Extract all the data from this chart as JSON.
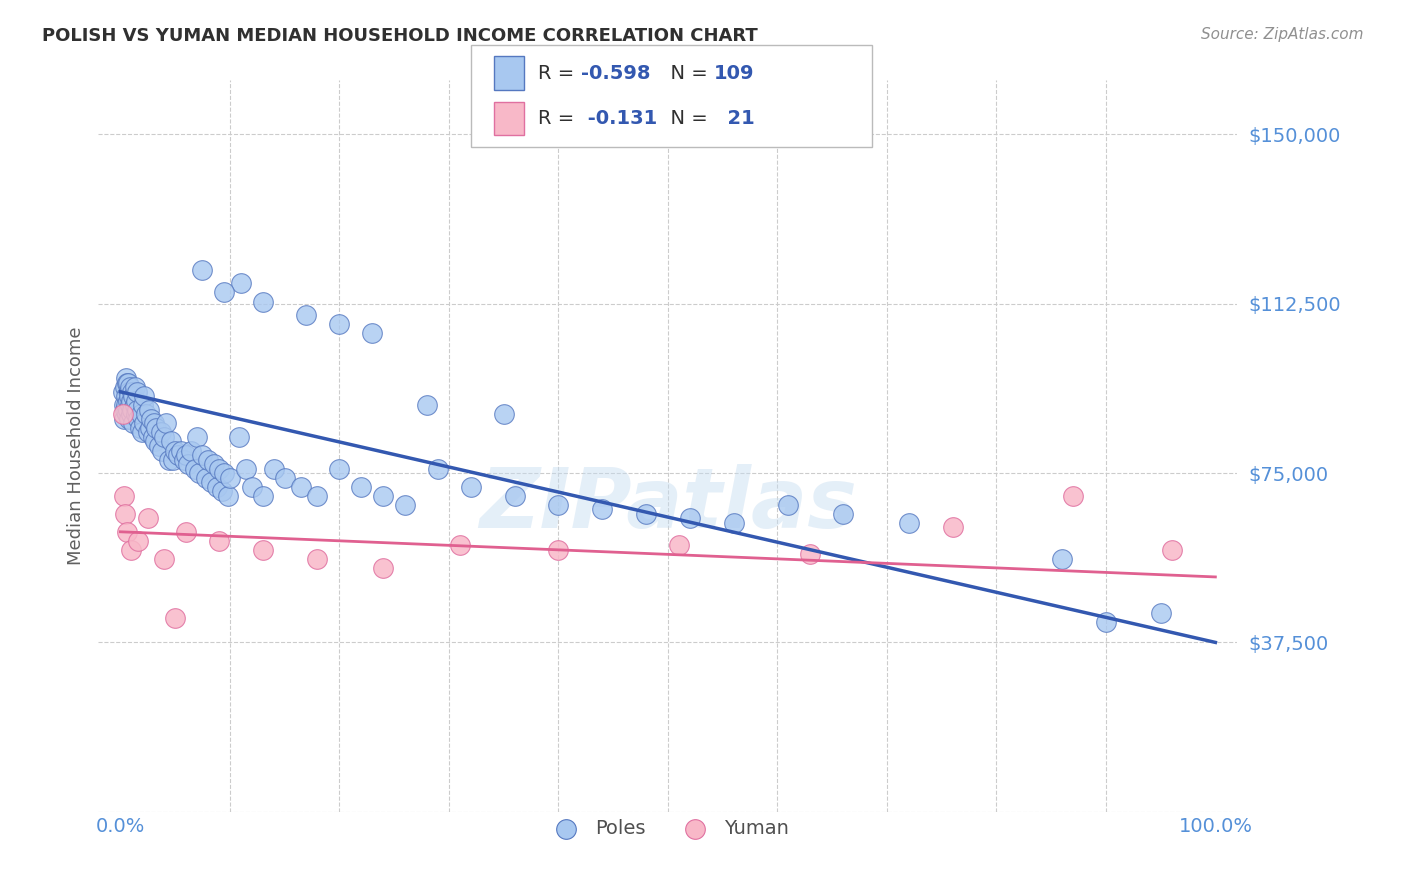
{
  "title": "POLISH VS YUMAN MEDIAN HOUSEHOLD INCOME CORRELATION CHART",
  "source": "Source: ZipAtlas.com",
  "ylabel": "Median Household Income",
  "watermark": "ZIPatlas",
  "legend_label_blue": "Poles",
  "legend_label_pink": "Yuman",
  "blue_scatter_color": "#A8C8F0",
  "blue_edge_color": "#5578C0",
  "blue_line_color": "#3358B0",
  "pink_scatter_color": "#F8B8C8",
  "pink_edge_color": "#E070A0",
  "pink_line_color": "#E06090",
  "title_color": "#303030",
  "source_color": "#909090",
  "ytick_color": "#5590D8",
  "xtick_color": "#5590D8",
  "ylabel_color": "#606060",
  "background_color": "#FFFFFF",
  "grid_color": "#CCCCCC",
  "legend_text_color": "#303030",
  "legend_rv_color": "#3358B0",
  "xlim": [
    -0.02,
    1.02
  ],
  "ylim": [
    0,
    162000
  ],
  "ytick_vals": [
    0,
    37500,
    75000,
    112500,
    150000
  ],
  "ytick_labels": [
    "",
    "$37,500",
    "$75,000",
    "$112,500",
    "$150,000"
  ],
  "blue_line_x0": 0.0,
  "blue_line_y0": 93000,
  "blue_line_x1": 1.0,
  "blue_line_y1": 37500,
  "pink_line_x0": 0.0,
  "pink_line_y0": 62000,
  "pink_line_x1": 1.0,
  "pink_line_y1": 52000,
  "poles_x": [
    0.002,
    0.003,
    0.003,
    0.004,
    0.004,
    0.005,
    0.005,
    0.005,
    0.006,
    0.006,
    0.007,
    0.007,
    0.007,
    0.008,
    0.008,
    0.008,
    0.009,
    0.009,
    0.01,
    0.01,
    0.011,
    0.011,
    0.012,
    0.012,
    0.013,
    0.013,
    0.014,
    0.014,
    0.015,
    0.015,
    0.016,
    0.018,
    0.019,
    0.02,
    0.021,
    0.022,
    0.022,
    0.023,
    0.025,
    0.026,
    0.027,
    0.028,
    0.03,
    0.031,
    0.032,
    0.033,
    0.035,
    0.037,
    0.038,
    0.04,
    0.042,
    0.044,
    0.046,
    0.048,
    0.05,
    0.053,
    0.055,
    0.058,
    0.06,
    0.062,
    0.065,
    0.068,
    0.07,
    0.072,
    0.075,
    0.078,
    0.08,
    0.083,
    0.086,
    0.088,
    0.09,
    0.093,
    0.095,
    0.098,
    0.1,
    0.108,
    0.115,
    0.12,
    0.13,
    0.14,
    0.15,
    0.165,
    0.18,
    0.2,
    0.22,
    0.24,
    0.26,
    0.29,
    0.32,
    0.36,
    0.4,
    0.44,
    0.48,
    0.52,
    0.56,
    0.61,
    0.66,
    0.72,
    0.86,
    0.95,
    0.075,
    0.11,
    0.095,
    0.13,
    0.17,
    0.2,
    0.23,
    0.28,
    0.35,
    0.9
  ],
  "poles_y": [
    93000,
    90000,
    87000,
    94000,
    89000,
    96000,
    92000,
    90000,
    95000,
    88000,
    95000,
    91000,
    89000,
    93000,
    87000,
    92000,
    90000,
    94000,
    88000,
    91000,
    93000,
    89000,
    86000,
    92000,
    90000,
    94000,
    88000,
    91000,
    89000,
    93000,
    87000,
    85000,
    88000,
    84000,
    90000,
    86000,
    92000,
    88000,
    84000,
    89000,
    85000,
    87000,
    83000,
    86000,
    82000,
    85000,
    81000,
    84000,
    80000,
    83000,
    86000,
    78000,
    82000,
    78000,
    80000,
    79000,
    80000,
    78000,
    79000,
    77000,
    80000,
    76000,
    83000,
    75000,
    79000,
    74000,
    78000,
    73000,
    77000,
    72000,
    76000,
    71000,
    75000,
    70000,
    74000,
    83000,
    76000,
    72000,
    70000,
    76000,
    74000,
    72000,
    70000,
    76000,
    72000,
    70000,
    68000,
    76000,
    72000,
    70000,
    68000,
    67000,
    66000,
    65000,
    64000,
    68000,
    66000,
    64000,
    56000,
    44000,
    120000,
    117000,
    115000,
    113000,
    110000,
    108000,
    106000,
    90000,
    88000,
    42000
  ],
  "yuman_x": [
    0.002,
    0.003,
    0.004,
    0.006,
    0.01,
    0.016,
    0.025,
    0.04,
    0.06,
    0.09,
    0.13,
    0.18,
    0.24,
    0.31,
    0.4,
    0.51,
    0.63,
    0.76,
    0.87,
    0.96,
    0.05
  ],
  "yuman_y": [
    88000,
    70000,
    66000,
    62000,
    58000,
    60000,
    65000,
    56000,
    62000,
    60000,
    58000,
    56000,
    54000,
    59000,
    58000,
    59000,
    57000,
    63000,
    70000,
    58000,
    43000
  ]
}
